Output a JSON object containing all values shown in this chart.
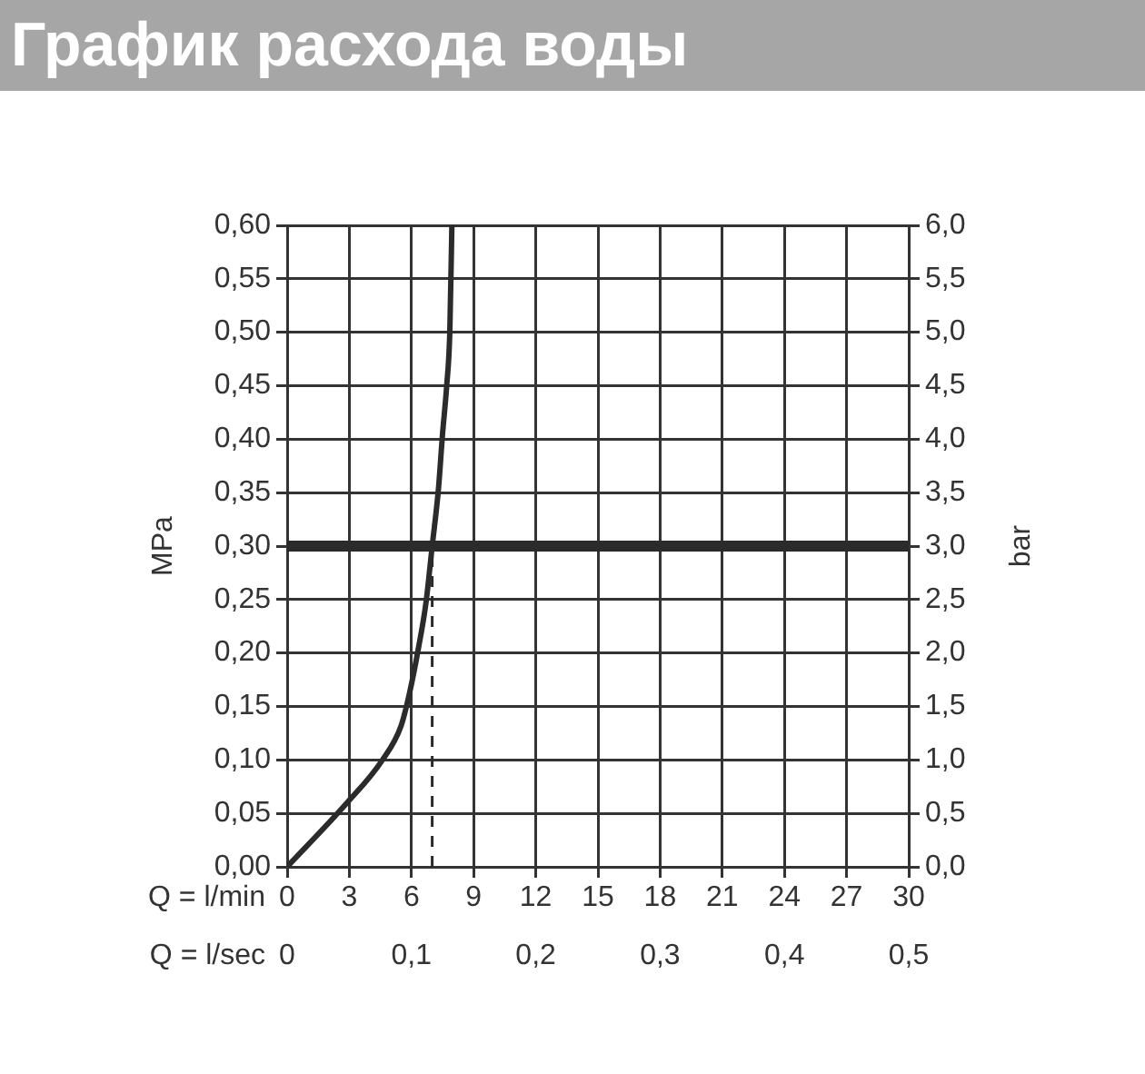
{
  "chart_data": {
    "type": "line",
    "title": "График расхода воды",
    "xlabel": "Q = l/min",
    "x2label": "Q = l/sec",
    "ylabel": "MPa",
    "y2label": "bar",
    "x": [
      0,
      2.85,
      4.6,
      5.5,
      5.9,
      6.35,
      6.7,
      7.0,
      7.3,
      7.5,
      7.7,
      7.85,
      7.95
    ],
    "series": [
      {
        "color": "#2b2b2b",
        "values": [
          0,
          0.059,
          0.1,
          0.132,
          0.162,
          0.206,
          0.247,
          0.3,
          0.353,
          0.405,
          0.45,
          0.5,
          0.6
        ]
      }
    ],
    "xlim": [
      0,
      30
    ],
    "xticks": [
      0,
      3,
      6,
      9,
      12,
      15,
      18,
      21,
      24,
      27,
      30
    ],
    "x2lim": [
      0,
      0.5
    ],
    "x2ticks": [
      0,
      {
        "value": 0.1,
        "label": "0,1"
      },
      {
        "value": 0.2,
        "label": "0,2"
      },
      {
        "value": 0.3,
        "label": "0,3"
      },
      {
        "value": 0.4,
        "label": "0,4"
      },
      {
        "value": 0.5,
        "label": "0,5"
      }
    ],
    "ylim": [
      0,
      0.6
    ],
    "yticks": [
      {
        "value": 0,
        "label": "0,00"
      },
      {
        "value": 0.05,
        "label": "0,05"
      },
      {
        "value": 0.1,
        "label": "0,10"
      },
      {
        "value": 0.15,
        "label": "0,15"
      },
      {
        "value": 0.2,
        "label": "0,20"
      },
      {
        "value": 0.25,
        "label": "0,25"
      },
      {
        "value": 0.3,
        "label": "0,30"
      },
      {
        "value": 0.35,
        "label": "0,35"
      },
      {
        "value": 0.4,
        "label": "0,40"
      },
      {
        "value": 0.45,
        "label": "0,45"
      },
      {
        "value": 0.5,
        "label": "0,50"
      },
      {
        "value": 0.55,
        "label": "0,55"
      },
      {
        "value": 0.6,
        "label": "0,60"
      }
    ],
    "y2lim": [
      0,
      6
    ],
    "y2ticks": [
      {
        "value": 0,
        "label": "0,0"
      },
      {
        "value": 0.5,
        "label": "0,5"
      },
      {
        "value": 1,
        "label": "1,0"
      },
      {
        "value": 1.5,
        "label": "1,5"
      },
      {
        "value": 2,
        "label": "2,0"
      },
      {
        "value": 2.5,
        "label": "2,5"
      },
      {
        "value": 3,
        "label": "3,0"
      },
      {
        "value": 3.5,
        "label": "3,5"
      },
      {
        "value": 4,
        "label": "4,0"
      },
      {
        "value": 4.5,
        "label": "4,5"
      },
      {
        "value": 5,
        "label": "5,0"
      },
      {
        "value": 5.5,
        "label": "5,5"
      },
      {
        "value": 6,
        "label": "6,0"
      }
    ],
    "ref_lines": [
      {
        "axis": "y",
        "value": 0.3,
        "color": "#2b2b2b",
        "line_style": "solid"
      },
      {
        "axis": "x",
        "value": 7.0,
        "color": "#2b2b2b",
        "line_style": "dashed"
      }
    ],
    "grid": true,
    "legend": false,
    "marker": "none",
    "line_style": "solid"
  }
}
